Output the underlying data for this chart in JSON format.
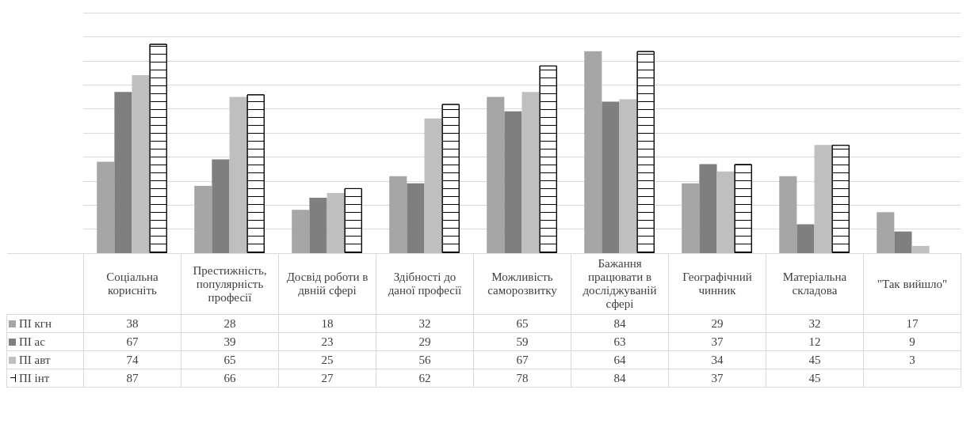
{
  "chart_data": {
    "type": "bar",
    "categories": [
      "Соціальна корисніть",
      "Престижність, популярність професії",
      "Досвід роботи в двній сфері",
      "Здібності до даної професії",
      "Можливість саморозвитку",
      "Бажання працювати в досліджуваній сфері",
      "Географічний чинник",
      "Матеріальна складова",
      "\"Так вийшло\""
    ],
    "series": [
      {
        "name": "ПІ кгн",
        "color": "#a6a6a6",
        "values": [
          38,
          28,
          18,
          32,
          65,
          84,
          29,
          32,
          17
        ]
      },
      {
        "name": "ПІ ас",
        "color": "#7f7f7f",
        "values": [
          67,
          39,
          23,
          29,
          59,
          63,
          37,
          12,
          9
        ]
      },
      {
        "name": "ПІ авт",
        "color": "#bfbfbf",
        "values": [
          74,
          65,
          25,
          56,
          67,
          64,
          34,
          45,
          3
        ]
      },
      {
        "name": "ПІ інт",
        "color": "#000000",
        "values": [
          87,
          66,
          27,
          62,
          78,
          84,
          37,
          45,
          null
        ]
      }
    ],
    "ylim": [
      0,
      100
    ],
    "yticks": [
      {
        "value": 0,
        "label": null
      },
      {
        "value": 10,
        "label": null
      },
      {
        "value": 20,
        "label": null
      },
      {
        "value": 30,
        "label": null
      },
      {
        "value": 40,
        "label": null
      },
      {
        "value": 50,
        "label": null
      },
      {
        "value": 60,
        "label": null
      },
      {
        "value": 70,
        "label": null
      },
      {
        "value": 80,
        "label": null
      },
      {
        "value": 90,
        "label": null
      },
      {
        "value": 100,
        "label": null
      }
    ],
    "grid": "y",
    "legend": "bottom left",
    "data_labels": true,
    "tick_labels": "x"
  }
}
